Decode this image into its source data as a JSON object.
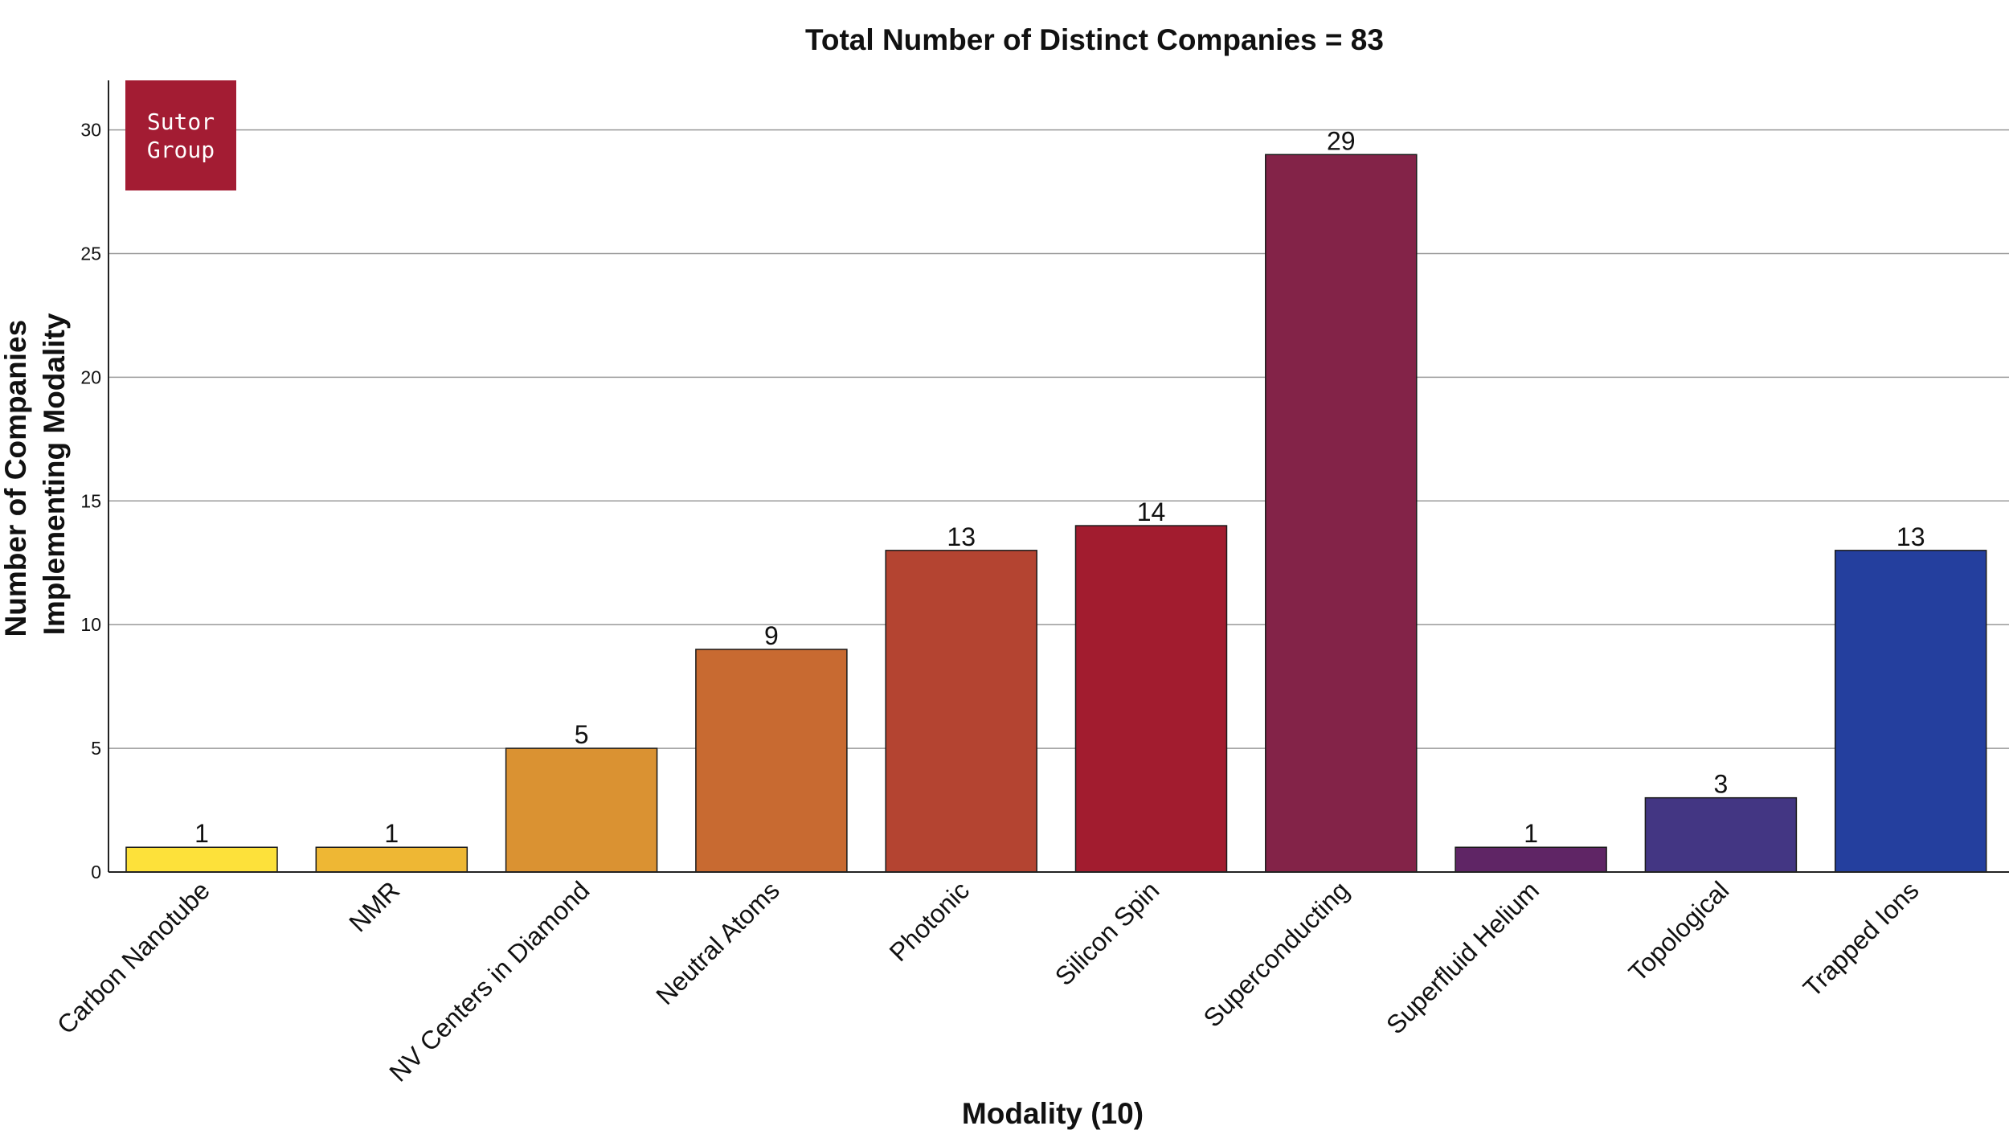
{
  "chart_data": {
    "type": "bar",
    "title": "Total Number of Distinct Companies = 83",
    "xlabel": "Modality (10)",
    "ylabel_lines": [
      "Number of Companies",
      "Implementing Modality"
    ],
    "categories": [
      "Carbon Nanotube",
      "NMR",
      "NV Centers in Diamond",
      "Neutral Atoms",
      "Photonic",
      "Silicon Spin",
      "Superconducting",
      "Superfluid Helium",
      "Topological",
      "Trapped Ions"
    ],
    "values": [
      1,
      1,
      5,
      9,
      13,
      14,
      29,
      1,
      3,
      13
    ],
    "bar_colors": [
      "#FDE13A",
      "#EEB734",
      "#DA9232",
      "#C86A31",
      "#B44431",
      "#A21C2F",
      "#832348",
      "#5F2565",
      "#433683",
      "#243F9E"
    ],
    "ylim": [
      0,
      32
    ],
    "yticks": [
      0,
      5,
      10,
      15,
      20,
      25,
      30
    ],
    "grid": "horizontal",
    "legend": "none"
  },
  "logo": {
    "lines": [
      "Sutor",
      "Group"
    ],
    "color": "#A31C33"
  },
  "colors": {
    "gridline": "#9a9a9a",
    "axis": "#222222",
    "bar_edge": "#1a1a1a"
  }
}
